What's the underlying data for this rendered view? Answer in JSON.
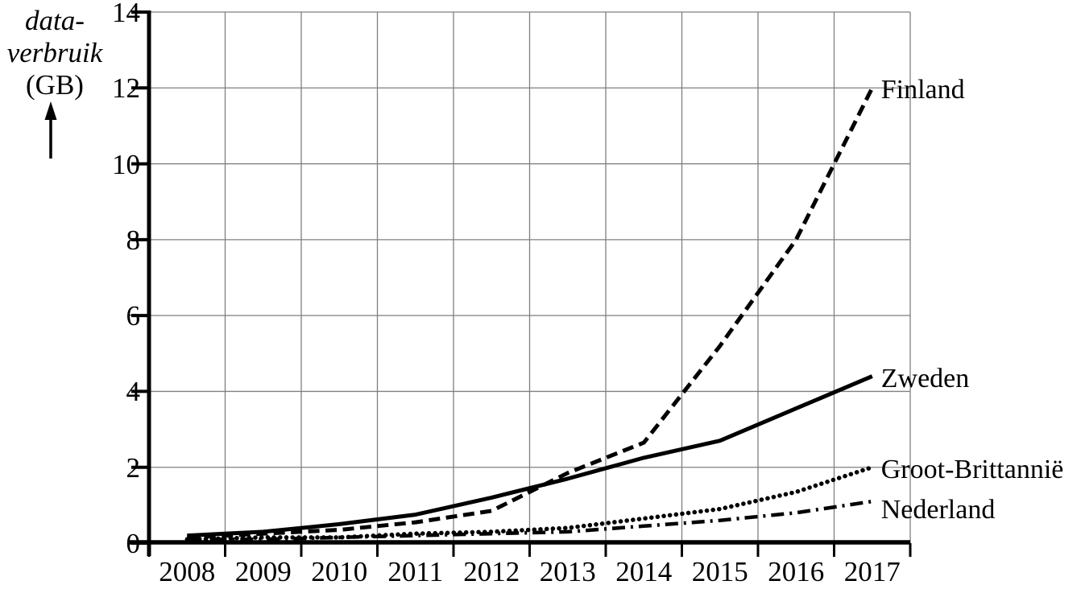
{
  "axis_title": {
    "line1": "data-",
    "line2": "verbruik",
    "line3": "(GB)"
  },
  "chart_data": {
    "type": "line",
    "title": "",
    "ylabel": "data-verbruik (GB)",
    "x_labels": [
      "2008",
      "2009",
      "2010",
      "2011",
      "2012",
      "2013",
      "2014",
      "2015",
      "2016",
      "2017"
    ],
    "yticks": [
      0,
      2,
      4,
      6,
      8,
      10,
      12,
      14
    ],
    "ylim": [
      0,
      14
    ],
    "grid": true,
    "legend_position": "line-end-labels",
    "series": [
      {
        "name": "Finland",
        "style": "dashed",
        "values": [
          0.15,
          0.25,
          0.35,
          0.55,
          0.85,
          1.85,
          2.65,
          5.2,
          8.0,
          12.0
        ]
      },
      {
        "name": "Zweden",
        "style": "solid",
        "values": [
          0.2,
          0.3,
          0.5,
          0.75,
          1.2,
          1.7,
          2.25,
          2.7,
          3.55,
          4.4
        ]
      },
      {
        "name": "Groot-Brittannië",
        "style": "dotted",
        "values": [
          0.1,
          0.15,
          0.15,
          0.25,
          0.3,
          0.4,
          0.65,
          0.9,
          1.35,
          2.0
        ]
      },
      {
        "name": "Nederland",
        "style": "dashdot",
        "values": [
          0.1,
          0.1,
          0.15,
          0.2,
          0.25,
          0.3,
          0.45,
          0.6,
          0.8,
          1.1
        ]
      }
    ]
  },
  "colors": {
    "line": "#000000",
    "grid": "#7f7f7f",
    "background": "#ffffff"
  }
}
